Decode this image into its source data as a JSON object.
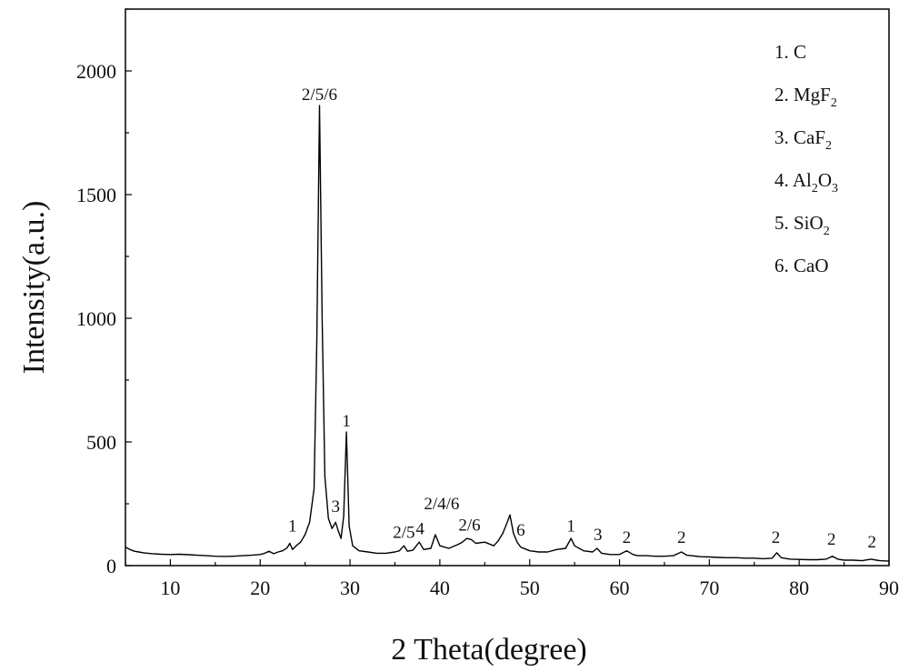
{
  "chart_data": {
    "type": "line",
    "title": "",
    "xlabel": "2 Theta(degree)",
    "ylabel": "Intensity(a.u.)",
    "xlim": [
      5,
      90
    ],
    "ylim": [
      0,
      2250
    ],
    "xticks": [
      10,
      20,
      30,
      40,
      50,
      60,
      70,
      80,
      90
    ],
    "yticks": [
      0,
      500,
      1000,
      1500,
      2000
    ],
    "grid": false,
    "legend_position": "top-right",
    "legend": [
      {
        "num": "1.",
        "base": "C",
        "sub": ""
      },
      {
        "num": "2.",
        "base": "MgF",
        "sub": "2"
      },
      {
        "num": "3.",
        "base": "CaF",
        "sub": "2"
      },
      {
        "num": "4.",
        "base": "Al",
        "sub": "2",
        "base2": "O",
        "sub2": "3"
      },
      {
        "num": "5.",
        "base": "SiO",
        "sub": "2"
      },
      {
        "num": "6.",
        "base": "CaO",
        "sub": ""
      }
    ],
    "series": [
      {
        "color": "#000000",
        "points": [
          [
            5,
            75
          ],
          [
            5.5,
            65
          ],
          [
            6,
            58
          ],
          [
            6.5,
            55
          ],
          [
            7,
            52
          ],
          [
            8,
            48
          ],
          [
            9,
            46
          ],
          [
            10,
            45
          ],
          [
            11,
            46
          ],
          [
            12,
            44
          ],
          [
            13,
            42
          ],
          [
            14,
            40
          ],
          [
            15,
            38
          ],
          [
            16,
            37
          ],
          [
            17,
            38
          ],
          [
            18,
            40
          ],
          [
            19,
            42
          ],
          [
            20,
            45
          ],
          [
            20.5,
            50
          ],
          [
            21,
            58
          ],
          [
            21.5,
            48
          ],
          [
            22,
            55
          ],
          [
            22.5,
            60
          ],
          [
            23,
            72
          ],
          [
            23.3,
            90
          ],
          [
            23.6,
            65
          ],
          [
            24,
            80
          ],
          [
            24.5,
            95
          ],
          [
            25,
            125
          ],
          [
            25.5,
            175
          ],
          [
            26,
            310
          ],
          [
            26.3,
            900
          ],
          [
            26.6,
            1860
          ],
          [
            26.9,
            1000
          ],
          [
            27.2,
            360
          ],
          [
            27.6,
            190
          ],
          [
            28,
            150
          ],
          [
            28.4,
            175
          ],
          [
            28.7,
            140
          ],
          [
            29,
            110
          ],
          [
            29.3,
            200
          ],
          [
            29.6,
            540
          ],
          [
            29.9,
            160
          ],
          [
            30.3,
            80
          ],
          [
            31,
            60
          ],
          [
            32,
            55
          ],
          [
            33,
            50
          ],
          [
            34,
            50
          ],
          [
            35,
            55
          ],
          [
            35.5,
            60
          ],
          [
            36,
            80
          ],
          [
            36.4,
            58
          ],
          [
            37,
            62
          ],
          [
            37.7,
            95
          ],
          [
            38.2,
            65
          ],
          [
            39,
            70
          ],
          [
            39.5,
            125
          ],
          [
            40,
            80
          ],
          [
            41,
            70
          ],
          [
            42,
            85
          ],
          [
            42.5,
            95
          ],
          [
            43,
            110
          ],
          [
            43.5,
            105
          ],
          [
            44,
            90
          ],
          [
            45,
            95
          ],
          [
            46,
            80
          ],
          [
            46.5,
            100
          ],
          [
            47,
            130
          ],
          [
            47.5,
            175
          ],
          [
            47.8,
            205
          ],
          [
            48.2,
            130
          ],
          [
            48.6,
            95
          ],
          [
            49,
            75
          ],
          [
            50,
            60
          ],
          [
            51,
            55
          ],
          [
            52,
            55
          ],
          [
            53,
            65
          ],
          [
            54,
            70
          ],
          [
            54.6,
            110
          ],
          [
            55,
            80
          ],
          [
            56,
            60
          ],
          [
            57,
            55
          ],
          [
            57.5,
            70
          ],
          [
            58,
            50
          ],
          [
            59,
            45
          ],
          [
            60,
            45
          ],
          [
            60.8,
            60
          ],
          [
            61.5,
            45
          ],
          [
            62,
            40
          ],
          [
            63,
            40
          ],
          [
            64,
            38
          ],
          [
            65,
            38
          ],
          [
            66,
            40
          ],
          [
            66.9,
            55
          ],
          [
            67.5,
            42
          ],
          [
            68,
            40
          ],
          [
            69,
            36
          ],
          [
            70,
            35
          ],
          [
            71,
            33
          ],
          [
            72,
            32
          ],
          [
            73,
            32
          ],
          [
            74,
            30
          ],
          [
            75,
            30
          ],
          [
            76,
            28
          ],
          [
            77,
            30
          ],
          [
            77.5,
            52
          ],
          [
            78,
            32
          ],
          [
            79,
            26
          ],
          [
            80,
            25
          ],
          [
            81,
            24
          ],
          [
            82,
            24
          ],
          [
            83,
            26
          ],
          [
            83.7,
            38
          ],
          [
            84.3,
            26
          ],
          [
            85,
            22
          ],
          [
            86,
            22
          ],
          [
            87,
            20
          ],
          [
            88,
            26
          ],
          [
            88.6,
            22
          ],
          [
            89,
            20
          ],
          [
            90,
            18
          ]
        ]
      }
    ],
    "annotations": [
      {
        "text": "2/5/6",
        "x": 26.6,
        "y": 1860
      },
      {
        "text": "1",
        "x": 29.6,
        "y": 540
      },
      {
        "text": "1",
        "x": 23.6,
        "y": 115
      },
      {
        "text": "3",
        "x": 28.4,
        "y": 195
      },
      {
        "text": "2/5",
        "x": 36.0,
        "y": 90
      },
      {
        "text": "4",
        "x": 37.8,
        "y": 105
      },
      {
        "text": "2/4/6",
        "x": 40.2,
        "y": 205
      },
      {
        "text": "2/6",
        "x": 43.3,
        "y": 120
      },
      {
        "text": "6",
        "x": 49.0,
        "y": 100
      },
      {
        "text": "1",
        "x": 54.6,
        "y": 115
      },
      {
        "text": "3",
        "x": 57.6,
        "y": 80
      },
      {
        "text": "2",
        "x": 60.8,
        "y": 70
      },
      {
        "text": "2",
        "x": 66.9,
        "y": 70
      },
      {
        "text": "2",
        "x": 77.4,
        "y": 70
      },
      {
        "text": "2",
        "x": 83.6,
        "y": 62
      },
      {
        "text": "2",
        "x": 88.1,
        "y": 52
      }
    ]
  }
}
